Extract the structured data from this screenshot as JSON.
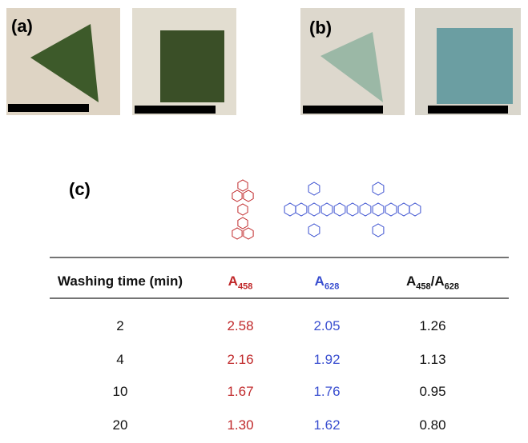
{
  "panels": {
    "a": "(a)",
    "b": "(b)",
    "c": "(c)"
  },
  "table": {
    "header": [
      {
        "text": "Washing time (min)"
      },
      {
        "main": "A",
        "sub": "458"
      },
      {
        "main": "A",
        "sub": "628"
      },
      {
        "main": "A",
        "sub": "458",
        "sep": "/",
        "main2": "A",
        "sub2": "628"
      }
    ],
    "rows": [
      [
        "2",
        "2.58",
        "2.05",
        "1.26"
      ],
      [
        "4",
        "2.16",
        "1.92",
        "1.13"
      ],
      [
        "10",
        "1.67",
        "1.76",
        "0.95"
      ],
      [
        "20",
        "1.30",
        "1.62",
        "0.80"
      ]
    ]
  }
}
